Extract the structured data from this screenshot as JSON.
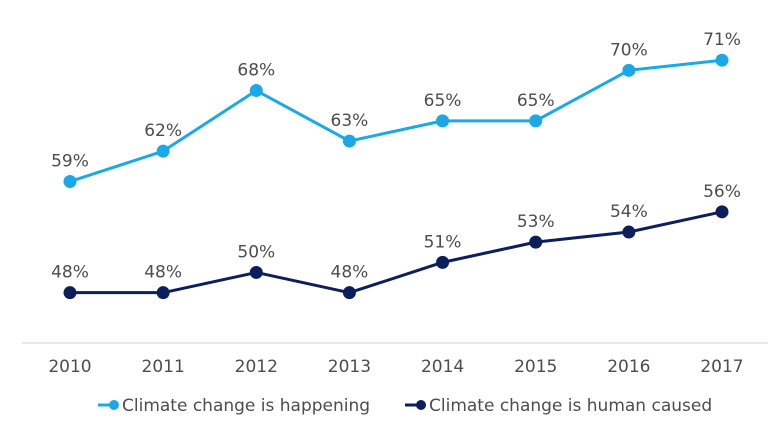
{
  "chart_data": {
    "type": "line",
    "x": [
      "2010",
      "2011",
      "2012",
      "2013",
      "2014",
      "2015",
      "2016",
      "2017"
    ],
    "series": [
      {
        "name": "Climate change is happening",
        "color": "#1aa9e6",
        "values": [
          59,
          62,
          68,
          63,
          65,
          65,
          70,
          71
        ],
        "labels": [
          "59%",
          "62%",
          "68%",
          "63%",
          "65%",
          "65%",
          "70%",
          "71%"
        ]
      },
      {
        "name": "Climate change is human caused",
        "color": "#0c1f5c",
        "values": [
          48,
          48,
          50,
          48,
          51,
          53,
          54,
          56
        ],
        "labels": [
          "48%",
          "48%",
          "50%",
          "48%",
          "51%",
          "53%",
          "54%",
          "56%"
        ]
      }
    ],
    "ylim": [
      45,
      73
    ],
    "grid": false,
    "legend_position": "bottom"
  }
}
